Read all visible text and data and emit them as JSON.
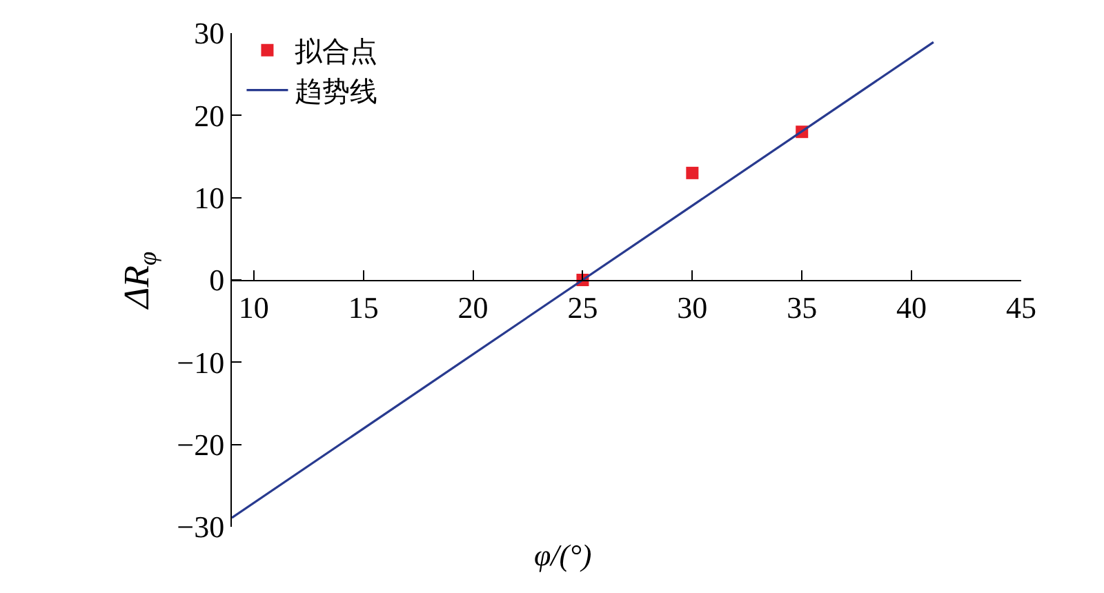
{
  "chart_data": {
    "type": "scatter",
    "xlabel": "φ/(°)",
    "ylabel": "ΔR$_{φ}$",
    "series": [
      {
        "name": "拟合点",
        "color": "#e8202a",
        "marker": "square",
        "x": [
          25,
          30,
          35
        ],
        "values": [
          0,
          13,
          18
        ]
      },
      {
        "name": "趋势线",
        "type": "line",
        "color": "#283a8f",
        "line_style": "solid",
        "x": [
          9,
          41
        ],
        "values": [
          -28.9,
          28.9
        ]
      }
    ],
    "xlim": [
      9,
      45
    ],
    "xticks": [
      10,
      15,
      20,
      25,
      30,
      35,
      40,
      45
    ],
    "ylim": [
      -30,
      30
    ],
    "yticks": [
      -30,
      -20,
      -10,
      0,
      10,
      20,
      30
    ],
    "legend": "top left"
  }
}
